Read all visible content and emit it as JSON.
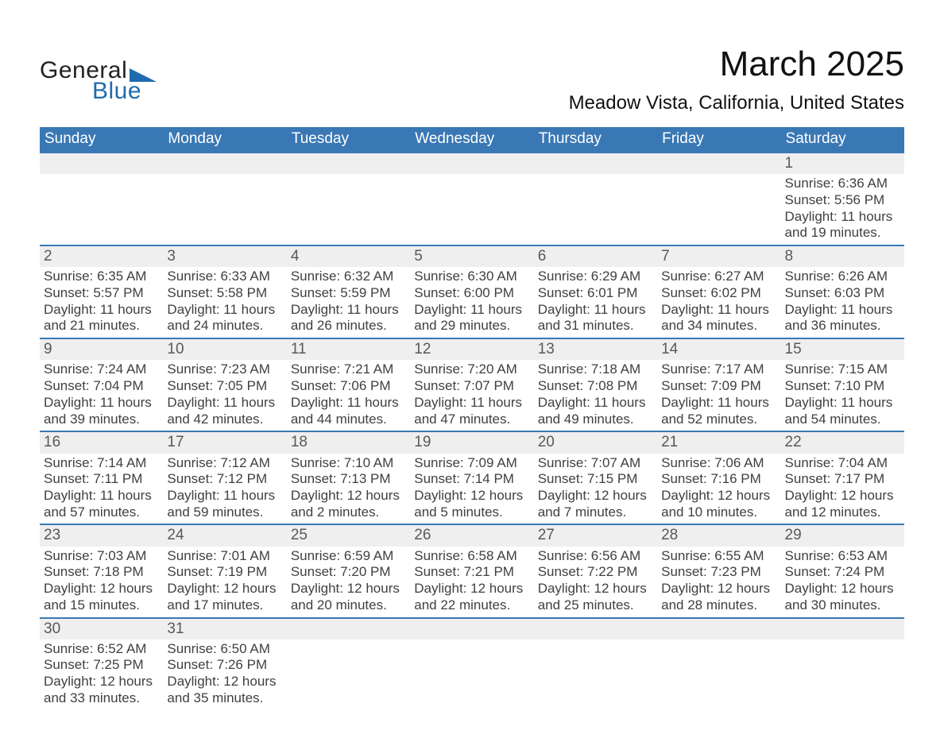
{
  "logo": {
    "word1": "General",
    "word2": "Blue"
  },
  "title": "March 2025",
  "location": "Meadow Vista, California, United States",
  "colors": {
    "header_blue": "#3a78b5",
    "date_bg": "#efefef",
    "logo_blue": "#1f6bb0"
  },
  "weekdays": [
    "Sunday",
    "Monday",
    "Tuesday",
    "Wednesday",
    "Thursday",
    "Friday",
    "Saturday"
  ],
  "weeks": [
    [
      {
        "day": "",
        "lines": []
      },
      {
        "day": "",
        "lines": []
      },
      {
        "day": "",
        "lines": []
      },
      {
        "day": "",
        "lines": []
      },
      {
        "day": "",
        "lines": []
      },
      {
        "day": "",
        "lines": []
      },
      {
        "day": "1",
        "lines": [
          "Sunrise: 6:36 AM",
          "Sunset: 5:56 PM",
          "Daylight: 11 hours and 19 minutes."
        ]
      }
    ],
    [
      {
        "day": "2",
        "lines": [
          "Sunrise: 6:35 AM",
          "Sunset: 5:57 PM",
          "Daylight: 11 hours and 21 minutes."
        ]
      },
      {
        "day": "3",
        "lines": [
          "Sunrise: 6:33 AM",
          "Sunset: 5:58 PM",
          "Daylight: 11 hours and 24 minutes."
        ]
      },
      {
        "day": "4",
        "lines": [
          "Sunrise: 6:32 AM",
          "Sunset: 5:59 PM",
          "Daylight: 11 hours and 26 minutes."
        ]
      },
      {
        "day": "5",
        "lines": [
          "Sunrise: 6:30 AM",
          "Sunset: 6:00 PM",
          "Daylight: 11 hours and 29 minutes."
        ]
      },
      {
        "day": "6",
        "lines": [
          "Sunrise: 6:29 AM",
          "Sunset: 6:01 PM",
          "Daylight: 11 hours and 31 minutes."
        ]
      },
      {
        "day": "7",
        "lines": [
          "Sunrise: 6:27 AM",
          "Sunset: 6:02 PM",
          "Daylight: 11 hours and 34 minutes."
        ]
      },
      {
        "day": "8",
        "lines": [
          "Sunrise: 6:26 AM",
          "Sunset: 6:03 PM",
          "Daylight: 11 hours and 36 minutes."
        ]
      }
    ],
    [
      {
        "day": "9",
        "lines": [
          "Sunrise: 7:24 AM",
          "Sunset: 7:04 PM",
          "Daylight: 11 hours and 39 minutes."
        ]
      },
      {
        "day": "10",
        "lines": [
          "Sunrise: 7:23 AM",
          "Sunset: 7:05 PM",
          "Daylight: 11 hours and 42 minutes."
        ]
      },
      {
        "day": "11",
        "lines": [
          "Sunrise: 7:21 AM",
          "Sunset: 7:06 PM",
          "Daylight: 11 hours and 44 minutes."
        ]
      },
      {
        "day": "12",
        "lines": [
          "Sunrise: 7:20 AM",
          "Sunset: 7:07 PM",
          "Daylight: 11 hours and 47 minutes."
        ]
      },
      {
        "day": "13",
        "lines": [
          "Sunrise: 7:18 AM",
          "Sunset: 7:08 PM",
          "Daylight: 11 hours and 49 minutes."
        ]
      },
      {
        "day": "14",
        "lines": [
          "Sunrise: 7:17 AM",
          "Sunset: 7:09 PM",
          "Daylight: 11 hours and 52 minutes."
        ]
      },
      {
        "day": "15",
        "lines": [
          "Sunrise: 7:15 AM",
          "Sunset: 7:10 PM",
          "Daylight: 11 hours and 54 minutes."
        ]
      }
    ],
    [
      {
        "day": "16",
        "lines": [
          "Sunrise: 7:14 AM",
          "Sunset: 7:11 PM",
          "Daylight: 11 hours and 57 minutes."
        ]
      },
      {
        "day": "17",
        "lines": [
          "Sunrise: 7:12 AM",
          "Sunset: 7:12 PM",
          "Daylight: 11 hours and 59 minutes."
        ]
      },
      {
        "day": "18",
        "lines": [
          "Sunrise: 7:10 AM",
          "Sunset: 7:13 PM",
          "Daylight: 12 hours and 2 minutes."
        ]
      },
      {
        "day": "19",
        "lines": [
          "Sunrise: 7:09 AM",
          "Sunset: 7:14 PM",
          "Daylight: 12 hours and 5 minutes."
        ]
      },
      {
        "day": "20",
        "lines": [
          "Sunrise: 7:07 AM",
          "Sunset: 7:15 PM",
          "Daylight: 12 hours and 7 minutes."
        ]
      },
      {
        "day": "21",
        "lines": [
          "Sunrise: 7:06 AM",
          "Sunset: 7:16 PM",
          "Daylight: 12 hours and 10 minutes."
        ]
      },
      {
        "day": "22",
        "lines": [
          "Sunrise: 7:04 AM",
          "Sunset: 7:17 PM",
          "Daylight: 12 hours and 12 minutes."
        ]
      }
    ],
    [
      {
        "day": "23",
        "lines": [
          "Sunrise: 7:03 AM",
          "Sunset: 7:18 PM",
          "Daylight: 12 hours and 15 minutes."
        ]
      },
      {
        "day": "24",
        "lines": [
          "Sunrise: 7:01 AM",
          "Sunset: 7:19 PM",
          "Daylight: 12 hours and 17 minutes."
        ]
      },
      {
        "day": "25",
        "lines": [
          "Sunrise: 6:59 AM",
          "Sunset: 7:20 PM",
          "Daylight: 12 hours and 20 minutes."
        ]
      },
      {
        "day": "26",
        "lines": [
          "Sunrise: 6:58 AM",
          "Sunset: 7:21 PM",
          "Daylight: 12 hours and 22 minutes."
        ]
      },
      {
        "day": "27",
        "lines": [
          "Sunrise: 6:56 AM",
          "Sunset: 7:22 PM",
          "Daylight: 12 hours and 25 minutes."
        ]
      },
      {
        "day": "28",
        "lines": [
          "Sunrise: 6:55 AM",
          "Sunset: 7:23 PM",
          "Daylight: 12 hours and 28 minutes."
        ]
      },
      {
        "day": "29",
        "lines": [
          "Sunrise: 6:53 AM",
          "Sunset: 7:24 PM",
          "Daylight: 12 hours and 30 minutes."
        ]
      }
    ],
    [
      {
        "day": "30",
        "lines": [
          "Sunrise: 6:52 AM",
          "Sunset: 7:25 PM",
          "Daylight: 12 hours and 33 minutes."
        ]
      },
      {
        "day": "31",
        "lines": [
          "Sunrise: 6:50 AM",
          "Sunset: 7:26 PM",
          "Daylight: 12 hours and 35 minutes."
        ]
      },
      {
        "day": "",
        "lines": []
      },
      {
        "day": "",
        "lines": []
      },
      {
        "day": "",
        "lines": []
      },
      {
        "day": "",
        "lines": []
      },
      {
        "day": "",
        "lines": []
      }
    ]
  ]
}
